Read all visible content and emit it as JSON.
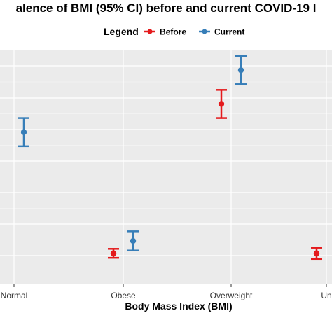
{
  "chart_data": {
    "type": "scatter",
    "title": "alence of BMI (95% CI) before and current COVID-19 l",
    "xlabel": "Body Mass Index (BMI)",
    "ylabel": "",
    "categories": [
      "Normal",
      "Obese",
      "Overweight",
      "Un"
    ],
    "legend": {
      "title": "Legend",
      "placement": "top",
      "entries": [
        "Before",
        "Current"
      ]
    },
    "series": [
      {
        "name": "Before",
        "color": "#e41a1c",
        "points": [
          {
            "category": "Obese",
            "y": 0.3,
            "ci": [
              0.14,
              0.46
            ]
          },
          {
            "category": "Overweight",
            "y": 5.6,
            "ci": [
              5.1,
              6.1
            ]
          },
          {
            "category": "Un",
            "y": 0.3,
            "ci": [
              0.1,
              0.5
            ]
          }
        ]
      },
      {
        "name": "Current",
        "color": "#377eb8",
        "points": [
          {
            "category": "Normal",
            "y": 4.6,
            "ci": [
              4.1,
              5.1
            ]
          },
          {
            "category": "Obese",
            "y": 0.74,
            "ci": [
              0.4,
              1.08
            ]
          },
          {
            "category": "Overweight",
            "y": 6.8,
            "ci": [
              6.3,
              7.3
            ]
          }
        ]
      }
    ],
    "ylim": [
      -0.8,
      7.5
    ],
    "grid": true,
    "panel_background": "#ebebeb",
    "grid_color": "#ffffff"
  }
}
